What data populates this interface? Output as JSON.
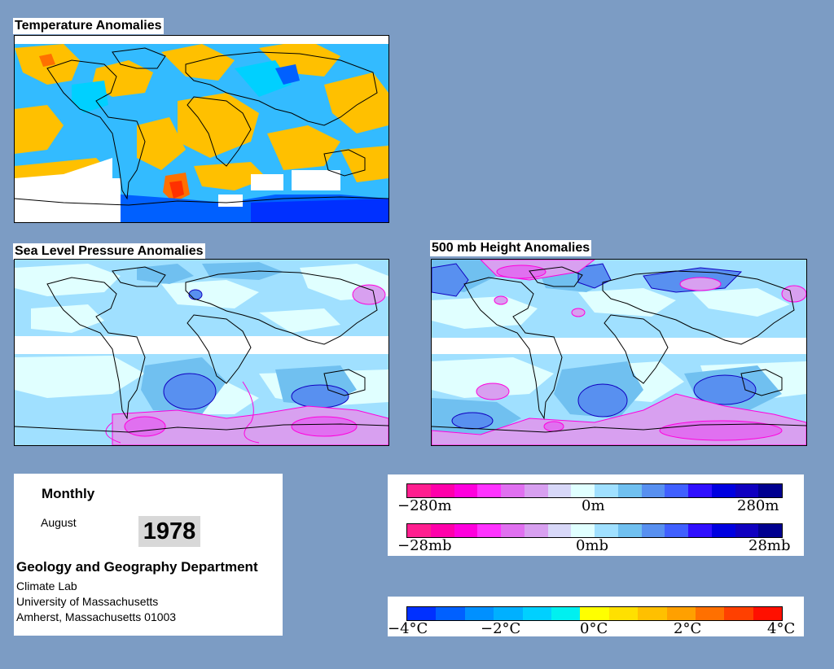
{
  "titles": {
    "temperature": "Temperature Anomalies",
    "slp": "Sea Level Pressure Anomalies",
    "height500": "500 mb Height Anomalies"
  },
  "info": {
    "period": "Monthly",
    "month": "August",
    "year": "1978",
    "department": "Geology and Geography Department",
    "lab": "Climate Lab",
    "university": "University of Massachusetts",
    "address": "Amherst, Massachusetts 01003"
  },
  "height_legend": {
    "labels": [
      "−280m",
      "0m",
      "280m"
    ],
    "colors": [
      "#ff1f8f",
      "#ff00aa",
      "#ff00dd",
      "#ff33ff",
      "#e070f0",
      "#d8a0f0",
      "#d8d8f8",
      "#e0ffff",
      "#a0e0ff",
      "#70c0f0",
      "#5890f0",
      "#4060ff",
      "#3010ff",
      "#0000e0",
      "#1000c0",
      "#000090"
    ]
  },
  "slp_legend": {
    "labels": [
      "−28mb",
      "0mb",
      "28mb"
    ],
    "colors": [
      "#ff1f8f",
      "#ff00aa",
      "#ff00dd",
      "#ff33ff",
      "#e070f0",
      "#d8a0f0",
      "#d8d8f8",
      "#e0ffff",
      "#a0e0ff",
      "#70c0f0",
      "#5890f0",
      "#4060ff",
      "#3010ff",
      "#0000e0",
      "#1000c0",
      "#000090"
    ]
  },
  "temp_legend": {
    "labels": [
      "−4°C",
      "−2°C",
      "0°C",
      "2°C",
      "4°C"
    ],
    "colors": [
      "#0030ff",
      "#0060ff",
      "#0090ff",
      "#00b0ff",
      "#00d0ff",
      "#00f0f0",
      "#ffff00",
      "#ffe000",
      "#ffc000",
      "#ffa000",
      "#ff7000",
      "#ff4000",
      "#ff1000"
    ]
  },
  "palette": {
    "background": "#7c9cc4",
    "temp_warm": "#ffc000",
    "temp_cool": "#33bbff",
    "pressure_low": "#70c0f0",
    "pressure_high": "#e070f0"
  }
}
